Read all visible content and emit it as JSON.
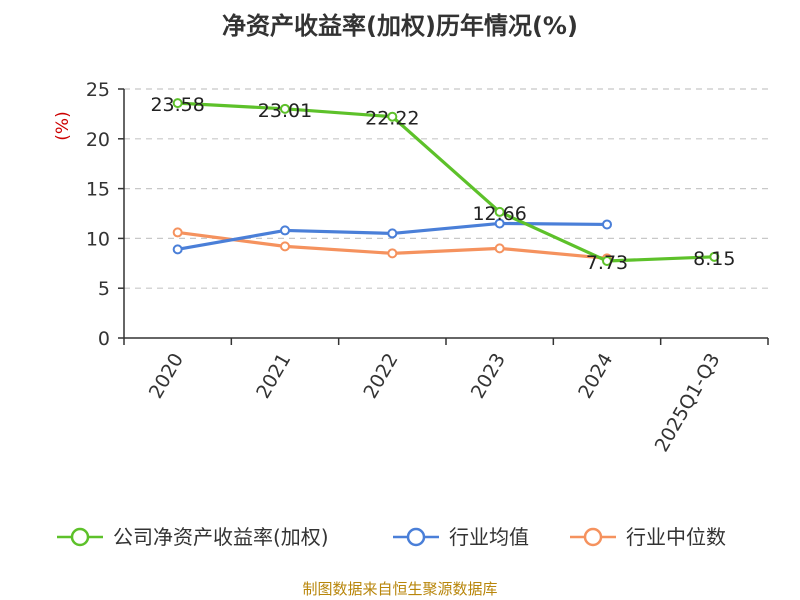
{
  "chart_data": {
    "type": "line",
    "title": "净资产收益率(加权)历年情况(%)",
    "ylabel": "(%)",
    "xlabel": "",
    "ylim": [
      0,
      25
    ],
    "yticks": [
      0,
      5,
      10,
      15,
      20,
      25
    ],
    "grid": true,
    "legend_position": "bottom",
    "categories": [
      "2020",
      "2021",
      "2022",
      "2023",
      "2024",
      "2025Q1-Q3"
    ],
    "series": [
      {
        "name": "公司净资产收益率(加权)",
        "color": "#5dc12a",
        "values": [
          23.58,
          23.01,
          22.22,
          12.66,
          7.73,
          8.15
        ],
        "labels": [
          "23.58",
          "23.01",
          "22.22",
          "12.66",
          "7.73",
          "8.15"
        ]
      },
      {
        "name": "行业均值",
        "color": "#4a7fd8",
        "values": [
          8.9,
          10.8,
          10.5,
          11.5,
          11.4,
          null
        ]
      },
      {
        "name": "行业中位数",
        "color": "#f5925e",
        "values": [
          10.6,
          9.2,
          8.5,
          9.0,
          8.0,
          null
        ]
      }
    ]
  },
  "source": "制图数据来自恒生聚源数据库"
}
